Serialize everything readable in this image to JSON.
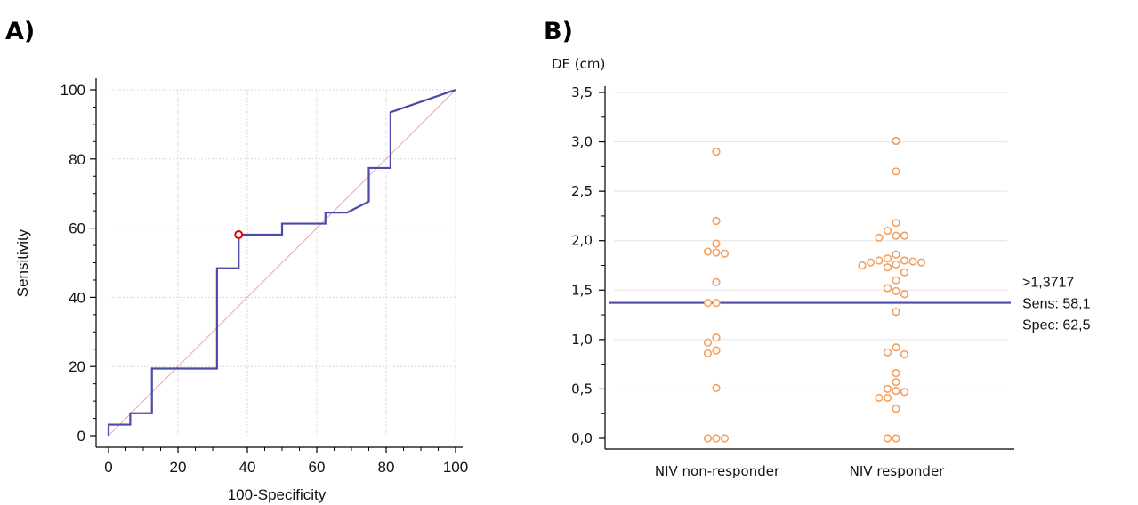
{
  "figure": {
    "panel_a_label": "A)",
    "panel_b_label": "B)"
  },
  "chart_data": [
    {
      "type": "line",
      "panel": "A)",
      "xlabel": "100-Specificity",
      "ylabel": "Sensitivity",
      "xlim": [
        0,
        100
      ],
      "ylim": [
        0,
        100
      ],
      "xticks": [
        0,
        20,
        40,
        60,
        80,
        100
      ],
      "yticks": [
        0,
        20,
        40,
        60,
        80,
        100
      ],
      "grid": true,
      "series": [
        {
          "color": "#4b4bab",
          "style": "step",
          "x": [
            0,
            0,
            6.25,
            6.25,
            12.5,
            12.5,
            31.25,
            31.25,
            37.5,
            37.5,
            50,
            50,
            62.5,
            62.5,
            68.75,
            75,
            75,
            81.25,
            81.25,
            100
          ],
          "y": [
            0,
            3.2,
            3.2,
            6.5,
            6.5,
            19.4,
            19.4,
            48.4,
            48.4,
            58.1,
            58.1,
            61.3,
            61.3,
            64.5,
            64.5,
            67.7,
            77.4,
            77.4,
            93.5,
            100
          ]
        },
        {
          "color": "#e8b4c0",
          "style": "diagonal",
          "x": [
            0,
            100
          ],
          "y": [
            0,
            100
          ]
        }
      ],
      "marker": {
        "x": 37.5,
        "y": 58.1,
        "color": "#e00000"
      }
    },
    {
      "type": "scatter",
      "panel": "B)",
      "ylabel": "DE (cm)",
      "ylim": [
        0,
        3.5
      ],
      "yticks": [
        "0,0",
        "0,5",
        "1,0",
        "1,5",
        "2,0",
        "2,5",
        "3,0",
        "3,5"
      ],
      "ytick_values": [
        0,
        0.5,
        1.0,
        1.5,
        2.0,
        2.5,
        3.0,
        3.5
      ],
      "categories": [
        "NIV non-responder",
        "NIV responder"
      ],
      "grid": true,
      "marker_color": "#f4a060",
      "cutoff": {
        "value": 1.3717,
        "color": "#4b4bab"
      },
      "annotation": [
        ">1,3717",
        "Sens: 58,1",
        "Spec: 62,5"
      ],
      "groups": [
        {
          "category": "NIV non-responder",
          "values": [
            2.9,
            2.2,
            1.97,
            1.89,
            1.88,
            1.87,
            1.58,
            1.37,
            1.37,
            1.02,
            0.97,
            0.89,
            0.86,
            0.51,
            0.0,
            0.0,
            0.0
          ]
        },
        {
          "category": "NIV responder",
          "values": [
            3.01,
            2.7,
            2.18,
            2.1,
            2.05,
            2.05,
            2.03,
            1.86,
            1.82,
            1.8,
            1.8,
            1.79,
            1.78,
            1.78,
            1.76,
            1.75,
            1.73,
            1.68,
            1.6,
            1.52,
            1.49,
            1.46,
            1.28,
            0.92,
            0.87,
            0.85,
            0.66,
            0.57,
            0.5,
            0.48,
            0.47,
            0.41,
            0.41,
            0.3,
            0.0,
            0.0
          ]
        }
      ]
    }
  ]
}
